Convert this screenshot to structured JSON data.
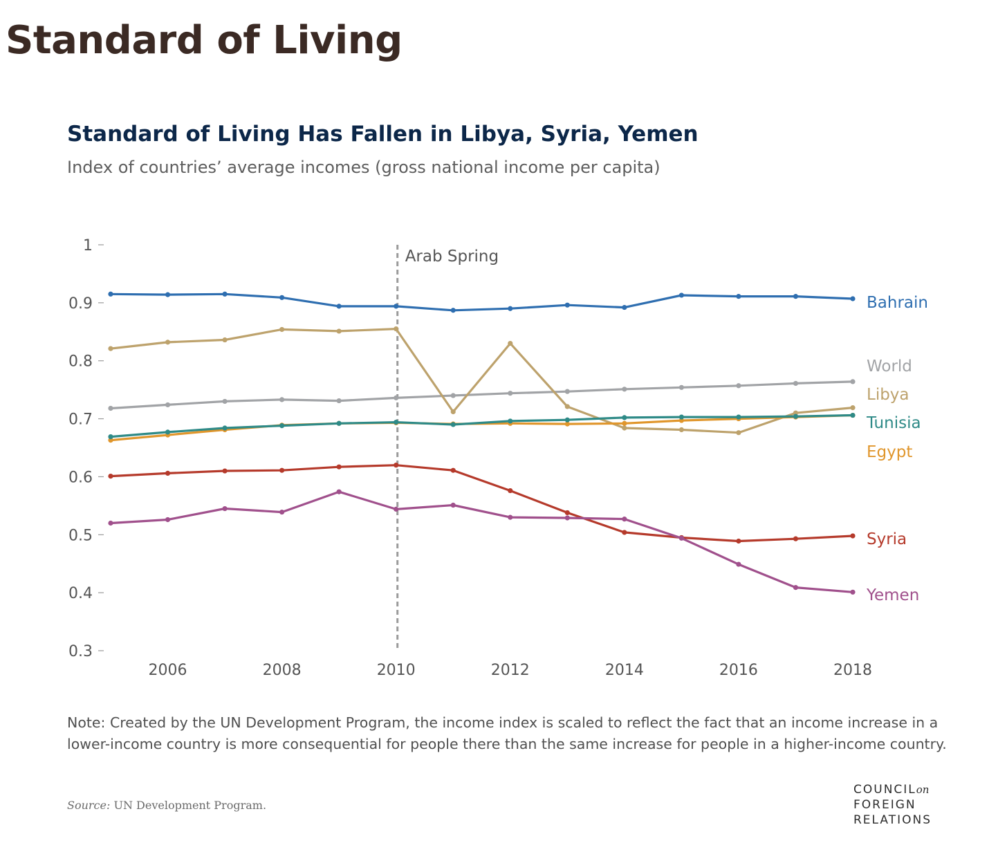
{
  "page": {
    "title": "Standard of Living",
    "note": "Note: Created by the UN Development Program, the income index is scaled to reflect the fact that an income increase in a lower-income country is more consequential for people there than the same increase for people in a higher-income country.",
    "source_label": "Source:",
    "source_text": " UN Development Program."
  },
  "logo": {
    "line1": "COUNCIL",
    "line1_suffix": "on",
    "line2": "FOREIGN",
    "line3": "RELATIONS"
  },
  "chart_data": {
    "type": "line",
    "title": "Standard of Living Has Fallen in Libya, Syria, Yemen",
    "subtitle": "Index of countries’ average incomes (gross national income per capita)",
    "xlabel": "",
    "ylabel": "",
    "x": [
      2005,
      2006,
      2007,
      2008,
      2009,
      2010,
      2011,
      2012,
      2013,
      2014,
      2015,
      2016,
      2017,
      2018
    ],
    "xlim": [
      2005,
      2018
    ],
    "ylim": [
      0.3,
      1
    ],
    "x_ticks": [
      "2006",
      "2008",
      "2010",
      "2012",
      "2014",
      "2016",
      "2018"
    ],
    "y_ticks": [
      "1",
      "0.9",
      "0.8",
      "0.7",
      "0.6",
      "0.5",
      "0.4",
      "0.3"
    ],
    "grid": false,
    "legend": "direct labels at right end of lines",
    "annotation": {
      "x": 2010,
      "label": "Arab Spring",
      "style": "dashed vertical line"
    },
    "series": [
      {
        "name": "Bahrain",
        "color": "#2e6eb0",
        "values": [
          0.915,
          0.914,
          0.915,
          0.909,
          0.894,
          0.894,
          0.887,
          0.89,
          0.896,
          0.892,
          0.913,
          0.911,
          0.911,
          0.907
        ]
      },
      {
        "name": "World",
        "color": "#a1a3a6",
        "values": [
          0.718,
          0.724,
          0.73,
          0.733,
          0.731,
          0.736,
          0.74,
          0.744,
          0.747,
          0.751,
          0.754,
          0.757,
          0.761,
          0.764
        ]
      },
      {
        "name": "Libya",
        "color": "#bda26c",
        "values": [
          0.821,
          0.832,
          0.836,
          0.854,
          0.851,
          0.855,
          0.712,
          0.83,
          0.721,
          0.684,
          0.681,
          0.676,
          0.71,
          0.719
        ]
      },
      {
        "name": "Tunisia",
        "color": "#2e8a87",
        "values": [
          0.669,
          0.677,
          0.684,
          0.688,
          0.692,
          0.694,
          0.69,
          0.696,
          0.698,
          0.702,
          0.703,
          0.703,
          0.704,
          0.706
        ]
      },
      {
        "name": "Egypt",
        "color": "#e0962c",
        "values": [
          0.663,
          0.672,
          0.681,
          0.689,
          0.692,
          0.693,
          0.691,
          0.692,
          0.691,
          0.692,
          0.697,
          0.7,
          0.703,
          0.706
        ]
      },
      {
        "name": "Syria",
        "color": "#b53a2b",
        "values": [
          0.601,
          0.606,
          0.61,
          0.611,
          0.617,
          0.62,
          0.611,
          0.576,
          0.538,
          0.504,
          0.495,
          0.489,
          0.493,
          0.498
        ]
      },
      {
        "name": "Yemen",
        "color": "#a0508c",
        "values": [
          0.52,
          0.526,
          0.545,
          0.539,
          0.574,
          0.544,
          0.551,
          0.53,
          0.529,
          0.527,
          0.494,
          0.449,
          0.409,
          0.401
        ]
      }
    ]
  }
}
